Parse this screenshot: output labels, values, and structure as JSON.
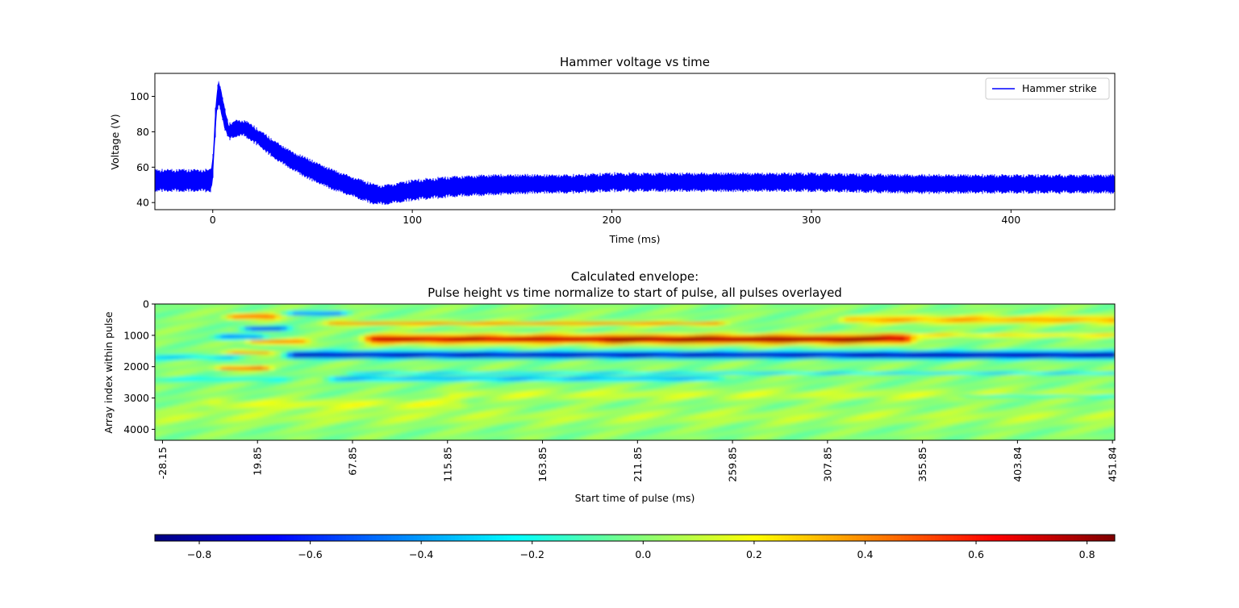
{
  "chart_data": [
    {
      "type": "line",
      "title": "Hammer voltage vs time",
      "xlabel": "Time (ms)",
      "ylabel": "Voltage (V)",
      "xlim": [
        -29,
        452
      ],
      "ylim": [
        36,
        113
      ],
      "xticks": [
        0,
        100,
        200,
        300,
        400
      ],
      "yticks": [
        40,
        60,
        80,
        100
      ],
      "legend": {
        "placement": "upper-right"
      },
      "series": [
        {
          "name": "Hammer strike",
          "color": "#0000ff",
          "band_x": [
            -29,
            -5,
            -1,
            0,
            1,
            2,
            3,
            4,
            6,
            8,
            12,
            16,
            20,
            25,
            30,
            40,
            50,
            60,
            70,
            80,
            85,
            90,
            100,
            110,
            120,
            140,
            160,
            180,
            200,
            250,
            300,
            350,
            400,
            452
          ],
          "upper": [
            58,
            58,
            58,
            65,
            88,
            103,
            109,
            104,
            93,
            84,
            86,
            86,
            83,
            79,
            75,
            68,
            63,
            58,
            54,
            50,
            49,
            50,
            52,
            53,
            54,
            55,
            55,
            55,
            56,
            56,
            56,
            55,
            55,
            55
          ],
          "lower": [
            47,
            47,
            47,
            52,
            72,
            90,
            96,
            92,
            82,
            76,
            78,
            78,
            75,
            71,
            66,
            59,
            53,
            48,
            44,
            40,
            39.5,
            40,
            42,
            43,
            44,
            45,
            46,
            46,
            47,
            47,
            47,
            46,
            46,
            46
          ]
        }
      ]
    },
    {
      "type": "heatmap",
      "title": "Calculated envelope:\nPulse height vs time normalize to start of pulse, all pulses overlayed",
      "title_lines": [
        "Calculated envelope:",
        "Pulse height vs time normalize to start of pulse, all pulses overlayed"
      ],
      "xlabel": "Start time of pulse (ms)",
      "ylabel": "Array index within pulse",
      "xlim": [
        -32,
        453
      ],
      "ylim": [
        4350,
        0
      ],
      "xticks": [
        "-28.15",
        "19.85",
        "67.85",
        "115.85",
        "163.85",
        "211.85",
        "259.85",
        "307.85",
        "355.85",
        "403.84",
        "451.84"
      ],
      "xtick_values": [
        -28.15,
        19.85,
        67.85,
        115.85,
        163.85,
        211.85,
        259.85,
        307.85,
        355.85,
        403.84,
        451.84
      ],
      "yticks": [
        0,
        1000,
        2000,
        3000,
        4000
      ],
      "colormap": "jet",
      "features": [
        {
          "x0": 80,
          "x1": 345,
          "y": 1120,
          "sy": 130,
          "v": 0.8
        },
        {
          "x0": 200,
          "x1": 330,
          "y": 1150,
          "sy": 110,
          "v": 0.15
        },
        {
          "x0": 40,
          "x1": 453,
          "y": 1620,
          "sy": 110,
          "v": -0.85
        },
        {
          "x0": 330,
          "x1": 453,
          "y": 1700,
          "sy": 90,
          "v": -0.1
        },
        {
          "x0": 60,
          "x1": 250,
          "y": 620,
          "sy": 60,
          "v": 0.45
        },
        {
          "x0": 320,
          "x1": 453,
          "y": 500,
          "sy": 120,
          "v": 0.35
        },
        {
          "x0": 340,
          "x1": 453,
          "y": 1000,
          "sy": 60,
          "v": 0.25
        },
        {
          "x0": 70,
          "x1": 453,
          "y": 2200,
          "sy": 45,
          "v": -0.3
        },
        {
          "x0": 60,
          "x1": 250,
          "y": 2380,
          "sy": 75,
          "v": -0.4
        },
        {
          "x0": 120,
          "x1": 453,
          "y": 2900,
          "sy": 150,
          "v": 0.12
        },
        {
          "x0": 0,
          "x1": 120,
          "y": 3200,
          "sy": 150,
          "v": 0.15
        },
        {
          "x0": -32,
          "x1": 453,
          "y": 3600,
          "sy": 220,
          "v": 0.08
        },
        {
          "x0": 380,
          "x1": 453,
          "y": 2950,
          "sy": 60,
          "v": -0.25
        },
        {
          "x0": 10,
          "x1": 25,
          "y": 400,
          "sy": 80,
          "v": 0.6
        },
        {
          "x0": 18,
          "x1": 30,
          "y": 780,
          "sy": 70,
          "v": -0.75
        },
        {
          "x0": 40,
          "x1": 60,
          "y": 300,
          "sy": 60,
          "v": -0.55
        },
        {
          "x0": 5,
          "x1": 18,
          "y": 1050,
          "sy": 90,
          "v": -0.55
        },
        {
          "x0": 20,
          "x1": 40,
          "y": 1200,
          "sy": 70,
          "v": 0.55
        },
        {
          "x0": 10,
          "x1": 22,
          "y": 1550,
          "sy": 60,
          "v": 0.45
        },
        {
          "x0": 5,
          "x1": 20,
          "y": 2050,
          "sy": 60,
          "v": 0.65
        },
        {
          "x0": -30,
          "x1": 5,
          "y": 1700,
          "sy": 80,
          "v": -0.3
        },
        {
          "x0": -30,
          "x1": 30,
          "y": 2400,
          "sy": 80,
          "v": -0.2
        }
      ]
    },
    {
      "type": "colorbar",
      "colormap": "jet",
      "vmin": -0.88,
      "vmax": 0.85,
      "ticks": [
        "−0.8",
        "−0.6",
        "−0.4",
        "−0.2",
        "0.0",
        "0.2",
        "0.4",
        "0.6",
        "0.8"
      ],
      "tick_values": [
        -0.8,
        -0.6,
        -0.4,
        -0.2,
        0.0,
        0.2,
        0.4,
        0.6,
        0.8
      ]
    }
  ]
}
